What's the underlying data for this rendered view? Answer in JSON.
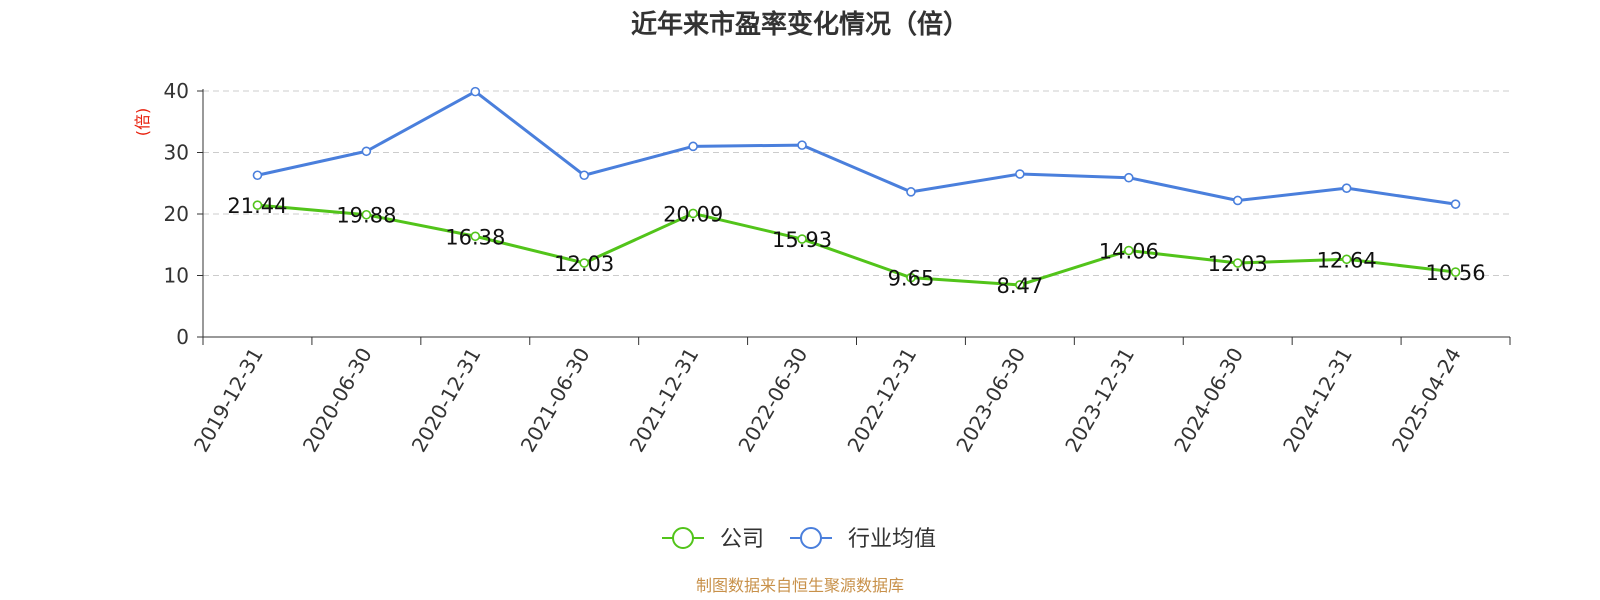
{
  "chart_data": {
    "type": "line",
    "title": "近年来市盈率变化情况（倍）",
    "ylabel": "(倍)",
    "xlabel": "",
    "ylim": [
      0,
      40
    ],
    "yticks": [
      0,
      10,
      20,
      30,
      40
    ],
    "yticklabels": [
      "0",
      "10",
      "20",
      "30",
      "40"
    ],
    "grid": true,
    "legend_position": "bottom-center",
    "categories": [
      "2019-12-31",
      "2020-06-30",
      "2020-12-31",
      "2021-06-30",
      "2021-12-31",
      "2022-06-30",
      "2022-12-31",
      "2023-06-30",
      "2023-12-31",
      "2024-06-30",
      "2024-12-31",
      "2025-04-24"
    ],
    "series": [
      {
        "name": "公司",
        "color": "#52c41a",
        "values": [
          21.44,
          19.88,
          16.38,
          12.03,
          20.09,
          15.93,
          9.65,
          8.47,
          14.06,
          12.03,
          12.64,
          10.56
        ],
        "labels": [
          "21.44",
          "19.88",
          "16.38",
          "12.03",
          "20.09",
          "15.93",
          "9.65",
          "8.47",
          "14.06",
          "12.03",
          "12.64",
          "10.56"
        ]
      },
      {
        "name": "行业均值",
        "color": "#4a7fdc",
        "values": [
          26.3,
          30.2,
          39.9,
          26.3,
          31.0,
          31.2,
          23.6,
          26.5,
          25.9,
          22.2,
          24.2,
          21.6
        ]
      }
    ],
    "source": "制图数据来自恒生聚源数据库",
    "colors": {
      "axis": "#333333",
      "grid": "#cccccc",
      "unit": "#e8200c",
      "source": "#c8914a"
    }
  }
}
